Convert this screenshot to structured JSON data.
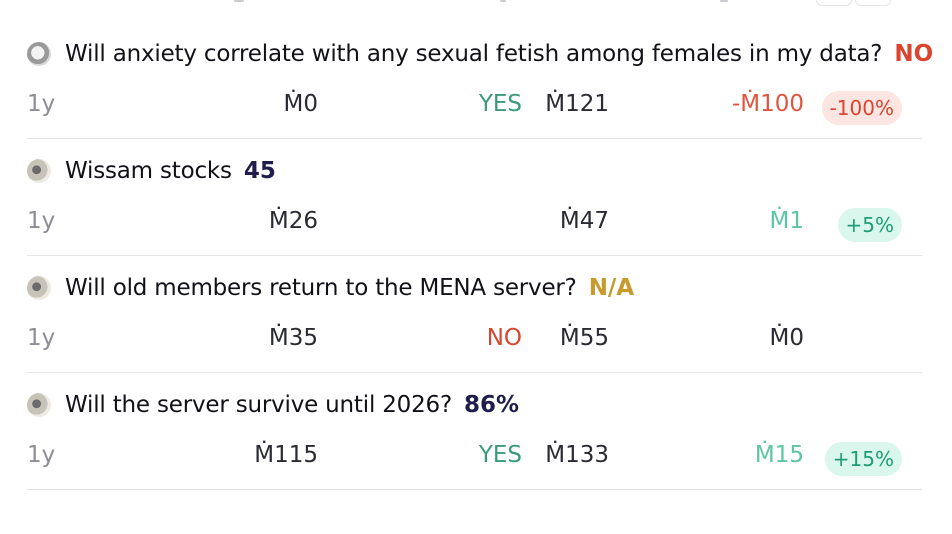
{
  "bets": [
    {
      "title": "Will anxiety correlate with any sexual fetish among females in my data?",
      "status": "NO",
      "status_kind": "no",
      "avatar": "gray",
      "age": "1y",
      "invested": "Ṁ0",
      "outcome": "YES",
      "outcome_kind": "yes",
      "value": "Ṁ121",
      "profit": "-Ṁ100",
      "profit_kind": "neg",
      "pct": "-100%",
      "pct_kind": "neg"
    },
    {
      "title": "Wissam stocks",
      "status": "45",
      "status_kind": "num",
      "avatar": "beige",
      "age": "1y",
      "invested": "Ṁ26",
      "outcome": "",
      "outcome_kind": "",
      "value": "Ṁ47",
      "profit": "Ṁ1",
      "profit_kind": "pos",
      "pct": "+5%",
      "pct_kind": "pos"
    },
    {
      "title": "Will old members return to the MENA server?",
      "status": "N/A",
      "status_kind": "na",
      "avatar": "beige",
      "age": "1y",
      "invested": "Ṁ35",
      "outcome": "NO",
      "outcome_kind": "no",
      "value": "Ṁ55",
      "profit": "Ṁ0",
      "profit_kind": "zero",
      "pct": "",
      "pct_kind": ""
    },
    {
      "title": "Will the server survive until 2026?",
      "status": "86%",
      "status_kind": "num",
      "avatar": "beige",
      "age": "1y",
      "invested": "Ṁ115",
      "outcome": "YES",
      "outcome_kind": "yes",
      "value": "Ṁ133",
      "profit": "Ṁ15",
      "profit_kind": "pos",
      "pct": "+15%",
      "pct_kind": "pos"
    }
  ]
}
